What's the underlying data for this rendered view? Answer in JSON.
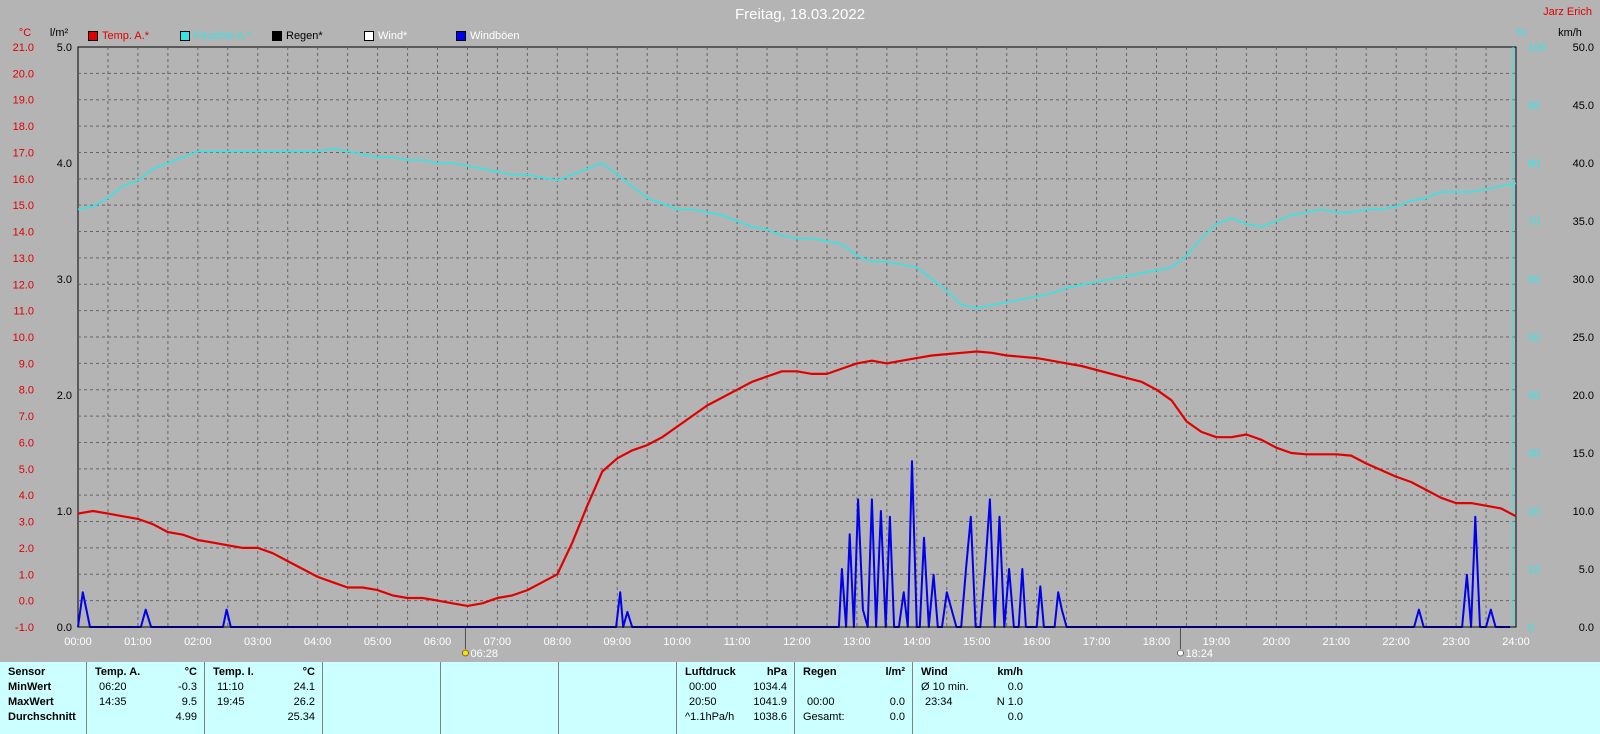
{
  "title": "Freitag, 18.03.2022",
  "author": "Jarz Erich",
  "legend": [
    {
      "label": "Temp. A.*",
      "color": "#e00000",
      "text_color": "#e00000"
    },
    {
      "label": "Feuchte A.*",
      "color": "#33e6e6",
      "text_color": "#33e6e6"
    },
    {
      "label": "Regen*",
      "color": "#000000",
      "text_color": "#000000"
    },
    {
      "label": "Wind*",
      "color": "#ffffff",
      "text_color": "#ffffff"
    },
    {
      "label": "Windböen",
      "color": "#0000ee",
      "text_color": "#ffffff"
    }
  ],
  "axes": {
    "temp_unit": "°C",
    "rain_unit": "l/m²",
    "hum_unit": "%",
    "wind_unit": "km/h",
    "temp_ticks": [
      "21.0",
      "20.0",
      "19.0",
      "18.0",
      "17.0",
      "16.0",
      "15.0",
      "14.0",
      "13.0",
      "12.0",
      "11.0",
      "10.0",
      "9.0",
      "8.0",
      "7.0",
      "6.0",
      "5.0",
      "4.0",
      "3.0",
      "2.0",
      "1.0",
      "0.0",
      "-1.0"
    ],
    "rain_ticks": [
      "5.0",
      "4.0",
      "3.0",
      "2.0",
      "1.0",
      "0.0"
    ],
    "hum_ticks": [
      "100",
      "90",
      "80",
      "70",
      "60",
      "50",
      "40",
      "30",
      "20",
      "10",
      "0"
    ],
    "wind_ticks": [
      "50.0",
      "45.0",
      "40.0",
      "35.0",
      "30.0",
      "25.0",
      "20.0",
      "15.0",
      "10.0",
      "5.0",
      "0.0"
    ],
    "time_ticks": [
      "00:00",
      "01:00",
      "02:00",
      "03:00",
      "04:00",
      "05:00",
      "06:00",
      "07:00",
      "08:00",
      "09:00",
      "10:00",
      "11:00",
      "12:00",
      "13:00",
      "14:00",
      "15:00",
      "16:00",
      "17:00",
      "18:00",
      "19:00",
      "20:00",
      "21:00",
      "22:00",
      "23:00",
      "24:00"
    ],
    "sunrise": "06:28",
    "sunset": "18:24"
  },
  "chart_data": {
    "type": "line",
    "x_unit": "hours",
    "temp_range": [
      -1,
      21
    ],
    "hum_range": [
      0,
      100
    ],
    "wind_range": [
      0,
      50
    ],
    "series": [
      {
        "name": "Temp. A.*",
        "axis": "temp",
        "color": "#e00000",
        "x": [
          0,
          0.25,
          0.5,
          0.75,
          1,
          1.25,
          1.5,
          1.75,
          2,
          2.25,
          2.5,
          2.75,
          3,
          3.25,
          3.5,
          3.75,
          4,
          4.25,
          4.5,
          4.75,
          5,
          5.25,
          5.5,
          5.75,
          6,
          6.25,
          6.5,
          6.75,
          7,
          7.25,
          7.5,
          7.75,
          8,
          8.25,
          8.5,
          8.75,
          9,
          9.25,
          9.5,
          9.75,
          10,
          10.25,
          10.5,
          10.75,
          11,
          11.25,
          11.5,
          11.75,
          12,
          12.25,
          12.5,
          12.75,
          13,
          13.25,
          13.5,
          13.75,
          14,
          14.25,
          14.5,
          14.75,
          15,
          15.25,
          15.5,
          15.75,
          16,
          16.25,
          16.5,
          16.75,
          17,
          17.25,
          17.5,
          17.75,
          18,
          18.25,
          18.5,
          18.75,
          19,
          19.25,
          19.5,
          19.75,
          20,
          20.25,
          20.5,
          20.75,
          21,
          21.25,
          21.5,
          21.75,
          22,
          22.25,
          22.5,
          22.75,
          23,
          23.25,
          23.5,
          23.75,
          24
        ],
        "values": [
          3.3,
          3.4,
          3.3,
          3.2,
          3.1,
          2.9,
          2.6,
          2.5,
          2.3,
          2.2,
          2.1,
          2.0,
          2.0,
          1.8,
          1.5,
          1.2,
          0.9,
          0.7,
          0.5,
          0.5,
          0.4,
          0.2,
          0.1,
          0.1,
          0.0,
          -0.1,
          -0.2,
          -0.1,
          0.1,
          0.2,
          0.4,
          0.7,
          1.0,
          2.2,
          3.6,
          4.9,
          5.4,
          5.7,
          5.9,
          6.2,
          6.6,
          7.0,
          7.4,
          7.7,
          8.0,
          8.3,
          8.5,
          8.7,
          8.7,
          8.6,
          8.6,
          8.8,
          9.0,
          9.1,
          9.0,
          9.1,
          9.2,
          9.3,
          9.35,
          9.4,
          9.45,
          9.4,
          9.3,
          9.25,
          9.2,
          9.1,
          9.0,
          8.9,
          8.75,
          8.6,
          8.45,
          8.3,
          8.0,
          7.6,
          6.8,
          6.4,
          6.2,
          6.2,
          6.3,
          6.1,
          5.8,
          5.6,
          5.55,
          5.55,
          5.55,
          5.5,
          5.2,
          4.95,
          4.7,
          4.5,
          4.2,
          3.9,
          3.7,
          3.7,
          3.6,
          3.5,
          3.2
        ]
      },
      {
        "name": "Feuchte A.*",
        "axis": "hum",
        "color": "#33e6e6",
        "x": [
          0,
          0.25,
          0.5,
          0.75,
          1,
          1.25,
          1.5,
          1.75,
          2,
          2.25,
          2.5,
          2.75,
          3,
          3.25,
          3.5,
          3.75,
          4,
          4.25,
          4.5,
          4.75,
          5,
          5.25,
          5.5,
          5.75,
          6,
          6.25,
          6.5,
          6.75,
          7,
          7.25,
          7.5,
          7.75,
          8,
          8.25,
          8.5,
          8.75,
          9,
          9.25,
          9.5,
          9.75,
          10,
          10.25,
          10.5,
          10.75,
          11,
          11.25,
          11.5,
          11.75,
          12,
          12.25,
          12.5,
          12.75,
          13,
          13.25,
          13.5,
          13.75,
          14,
          14.25,
          14.5,
          14.75,
          15,
          15.25,
          15.5,
          15.75,
          16,
          16.25,
          16.5,
          16.75,
          17,
          17.25,
          17.5,
          17.75,
          18,
          18.25,
          18.5,
          18.75,
          19,
          19.25,
          19.5,
          19.75,
          20,
          20.25,
          20.5,
          20.75,
          21,
          21.25,
          21.5,
          21.75,
          22,
          22.25,
          22.5,
          22.75,
          23,
          23.25,
          23.5,
          23.75,
          24
        ],
        "values": [
          72,
          72.5,
          74,
          76,
          77,
          79,
          80,
          81,
          82,
          82,
          82,
          82,
          82,
          82,
          82,
          82,
          82,
          82.5,
          82,
          81.5,
          81,
          81,
          80.5,
          80.5,
          80,
          80,
          79.5,
          79,
          78.5,
          78,
          78,
          77.5,
          77,
          78,
          79,
          80,
          78,
          76,
          74,
          73,
          72,
          72,
          71.5,
          71,
          70,
          69,
          68.5,
          67.5,
          67,
          67,
          66.5,
          66,
          64,
          63,
          63,
          62.5,
          62,
          60,
          58,
          55.5,
          55,
          55.5,
          56,
          56.5,
          57,
          57.5,
          58.5,
          59,
          59.5,
          60,
          60.5,
          61,
          61.5,
          62,
          64,
          67,
          69.5,
          70.5,
          69.5,
          69,
          70,
          71,
          71.5,
          72,
          71.5,
          71.5,
          72,
          72,
          72.5,
          73.5,
          74,
          75,
          75,
          75,
          75.5,
          76,
          76.5
        ]
      },
      {
        "name": "Windböen",
        "axis": "wind",
        "color": "#0000ee",
        "x": [
          0,
          0.08,
          0.2,
          1.05,
          1.13,
          1.22,
          2.42,
          2.48,
          2.55,
          8.98,
          9.05,
          9.1,
          9.17,
          9.25,
          12.7,
          12.75,
          12.82,
          12.88,
          12.95,
          13.02,
          13.1,
          13.18,
          13.25,
          13.32,
          13.4,
          13.48,
          13.55,
          13.62,
          13.7,
          13.78,
          13.85,
          13.92,
          14.0,
          14.05,
          14.12,
          14.2,
          14.28,
          14.35,
          14.42,
          14.5,
          14.58,
          14.66,
          14.74,
          14.82,
          14.9,
          14.98,
          15.06,
          15.14,
          15.22,
          15.3,
          15.38,
          15.46,
          15.54,
          15.62,
          15.7,
          15.76,
          15.82,
          15.88,
          15.94,
          16.0,
          16.06,
          16.12,
          16.18,
          16.24,
          16.3,
          16.36,
          16.42,
          16.5,
          16.58,
          16.66,
          16.74,
          16.82,
          16.9,
          16.98,
          17.06,
          17.14,
          17.22,
          17.3,
          17.38,
          17.46,
          17.54,
          17.62,
          22.3,
          22.38,
          22.46,
          23.1,
          23.18,
          23.25,
          23.32,
          23.4,
          23.5,
          23.58,
          23.66,
          23.72,
          23.8,
          23.9
        ],
        "values": [
          0,
          3,
          0,
          0,
          1.5,
          0,
          0,
          1.5,
          0,
          0,
          3,
          0,
          1.3,
          0,
          0,
          5,
          0,
          8,
          0,
          11,
          1.5,
          0,
          11,
          0,
          10,
          0,
          9.5,
          0,
          0,
          3,
          0,
          14.3,
          0,
          0,
          7.7,
          0,
          4.5,
          0,
          0,
          3,
          1.5,
          0,
          0,
          5,
          9.5,
          0,
          0,
          5,
          11,
          0,
          9.5,
          0,
          5,
          0,
          0,
          5,
          0,
          0,
          0,
          0,
          3.5,
          0,
          0,
          0,
          0,
          3,
          1.5,
          0,
          0,
          0,
          0,
          0,
          0,
          0,
          0,
          0,
          0,
          0,
          0,
          0,
          0,
          0,
          0,
          1.5,
          0,
          0,
          4.5,
          0,
          9.5,
          0,
          0,
          1.5,
          0,
          0,
          0,
          0
        ]
      }
    ]
  },
  "stats": {
    "sensor": {
      "title": "Sensor",
      "rows": [
        "MinWert",
        "MaxWert",
        "Durchschnitt"
      ]
    },
    "temp_a": {
      "title": "Temp. A.",
      "unit": "°C",
      "min_time": "06:20",
      "min_val": "-0.3",
      "max_time": "14:35",
      "max_val": "9.5",
      "avg": "4.99"
    },
    "temp_i": {
      "title": "Temp. I.",
      "unit": "°C",
      "min_time": "11:10",
      "min_val": "24.1",
      "max_time": "19:45",
      "max_val": "26.2",
      "avg": "25.34"
    },
    "luftdruck": {
      "title": "Luftdruck",
      "unit": "hPa",
      "min_time": "00:00",
      "min_val": "1034.4",
      "max_time": "20:50",
      "max_val": "1041.9",
      "trend_label": "^1.1hPa/h",
      "trend_val": "1038.6"
    },
    "regen": {
      "title": "Regen",
      "unit": "l/m²",
      "max_time": "00:00",
      "max_val": "0.0",
      "total_label": "Gesamt:",
      "total_val": "0.0"
    },
    "wind": {
      "title": "Wind",
      "unit": "km/h",
      "min_label": "Ø 10 min.",
      "min_val": "0.0",
      "max_time": "23:34",
      "max_val": "N 1.0",
      "avg": "0.0"
    }
  }
}
